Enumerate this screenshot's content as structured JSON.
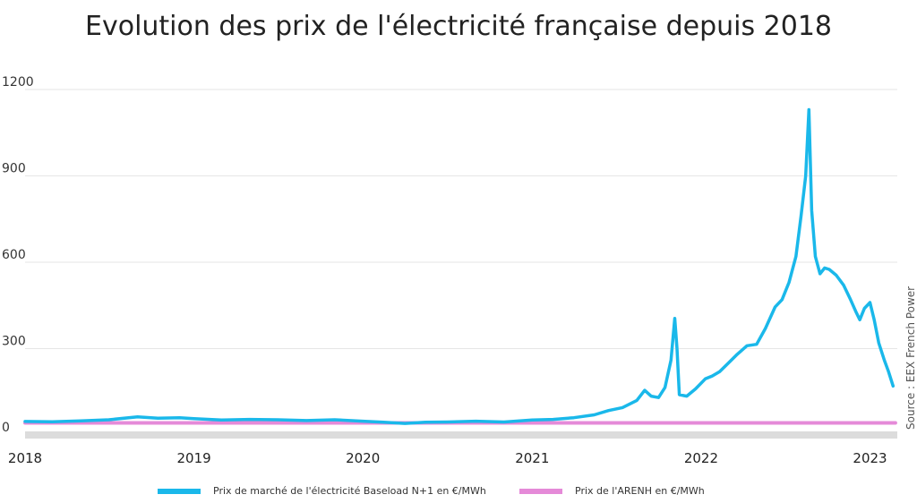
{
  "chart_data": {
    "type": "line",
    "title": "Evolution des prix de l'électricité française depuis 2018",
    "xlabel": "",
    "ylabel": "",
    "ylim": [
      0,
      1200
    ],
    "y_ticks": [
      0,
      300,
      600,
      900,
      1200
    ],
    "x_ticks": [
      "2018",
      "2019",
      "2020",
      "2021",
      "2022",
      "2023"
    ],
    "xlim": [
      "2018-01-01",
      "2023-03-01"
    ],
    "grid": "horizontal",
    "legend_position": "bottom",
    "source": "Source : EEX French Power",
    "series": [
      {
        "name": "Prix de marché de l'électricité Baseload N+1 en €/MWh",
        "color": "#1ab8ea",
        "points": [
          [
            "2018-01-01",
            47
          ],
          [
            "2018-03-01",
            46
          ],
          [
            "2018-05-01",
            49
          ],
          [
            "2018-07-01",
            53
          ],
          [
            "2018-09-01",
            63
          ],
          [
            "2018-10-15",
            58
          ],
          [
            "2018-12-01",
            60
          ],
          [
            "2019-01-01",
            57
          ],
          [
            "2019-03-01",
            52
          ],
          [
            "2019-05-01",
            54
          ],
          [
            "2019-07-01",
            53
          ],
          [
            "2019-09-01",
            50
          ],
          [
            "2019-11-01",
            53
          ],
          [
            "2020-01-01",
            48
          ],
          [
            "2020-02-15",
            44
          ],
          [
            "2020-04-01",
            40
          ],
          [
            "2020-05-15",
            44
          ],
          [
            "2020-07-01",
            45
          ],
          [
            "2020-09-01",
            48
          ],
          [
            "2020-11-01",
            45
          ],
          [
            "2021-01-01",
            52
          ],
          [
            "2021-02-15",
            54
          ],
          [
            "2021-04-01",
            60
          ],
          [
            "2021-05-15",
            70
          ],
          [
            "2021-06-15",
            85
          ],
          [
            "2021-07-15",
            95
          ],
          [
            "2021-08-15",
            120
          ],
          [
            "2021-09-01",
            155
          ],
          [
            "2021-09-15",
            135
          ],
          [
            "2021-10-01",
            130
          ],
          [
            "2021-10-15",
            165
          ],
          [
            "2021-10-28",
            260
          ],
          [
            "2021-11-05",
            405
          ],
          [
            "2021-11-10",
            300
          ],
          [
            "2021-11-15",
            140
          ],
          [
            "2021-12-01",
            135
          ],
          [
            "2021-12-20",
            160
          ],
          [
            "2022-01-10",
            195
          ],
          [
            "2022-01-25",
            205
          ],
          [
            "2022-02-10",
            220
          ],
          [
            "2022-03-01",
            250
          ],
          [
            "2022-03-20",
            280
          ],
          [
            "2022-04-10",
            310
          ],
          [
            "2022-05-01",
            315
          ],
          [
            "2022-05-20",
            370
          ],
          [
            "2022-06-10",
            445
          ],
          [
            "2022-06-25",
            470
          ],
          [
            "2022-07-10",
            530
          ],
          [
            "2022-07-25",
            620
          ],
          [
            "2022-08-05",
            760
          ],
          [
            "2022-08-15",
            900
          ],
          [
            "2022-08-22",
            1130
          ],
          [
            "2022-08-28",
            780
          ],
          [
            "2022-09-05",
            620
          ],
          [
            "2022-09-15",
            560
          ],
          [
            "2022-09-25",
            580
          ],
          [
            "2022-10-05",
            575
          ],
          [
            "2022-10-20",
            555
          ],
          [
            "2022-11-05",
            520
          ],
          [
            "2022-11-20",
            470
          ],
          [
            "2022-12-01",
            430
          ],
          [
            "2022-12-10",
            400
          ],
          [
            "2022-12-20",
            440
          ],
          [
            "2023-01-01",
            460
          ],
          [
            "2023-01-10",
            400
          ],
          [
            "2023-01-20",
            320
          ],
          [
            "2023-02-01",
            260
          ],
          [
            "2023-02-10",
            220
          ],
          [
            "2023-02-20",
            170
          ]
        ]
      },
      {
        "name": "Prix de l'ARENH en €/MWh",
        "color": "#e58ad8",
        "points": [
          [
            "2018-01-01",
            42
          ],
          [
            "2023-02-25",
            42
          ]
        ]
      }
    ]
  }
}
